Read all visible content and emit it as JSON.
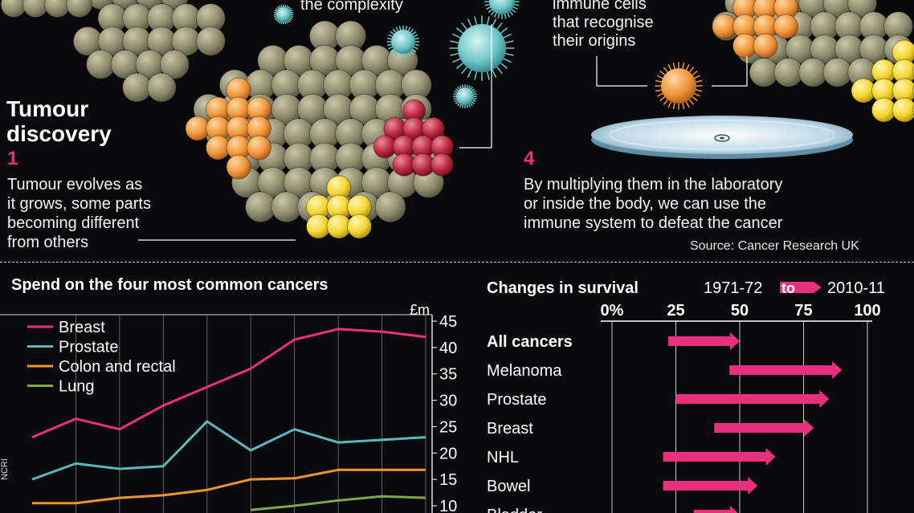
{
  "illustration": {
    "heading": "Tumour\ndiscovery",
    "top_left_text": "the complexity",
    "top_right_text": "immune cells\nthat recognise\ntheir origins",
    "step1": {
      "num": "1",
      "text": "Tumour evolves as\nit grows, some parts\nbecoming different\nfrom others"
    },
    "step4": {
      "num": "4",
      "text": "By multiplying them in the laboratory\nor inside the body, we can use the\nimmune system to defeat the cancer"
    },
    "source": "Source: Cancer Research UK",
    "colors": {
      "bg": "#0a0a0c",
      "cells": "#8d8a6e",
      "orange": "#f0953a",
      "red": "#b8273d",
      "yellow": "#f5d630",
      "virus": "#6fc7c9",
      "accent": "#e8317d"
    }
  },
  "side_label": "NCRI",
  "chart_data": [
    {
      "type": "line",
      "title": "Spend on the four most common cancers",
      "ylabel": "£m",
      "ylim": [
        10,
        45
      ],
      "yticks": [
        "45",
        "40",
        "35",
        "30",
        "25",
        "20",
        "15",
        "10"
      ],
      "x": [
        0,
        1,
        2,
        3,
        4,
        5,
        6,
        7,
        8,
        9
      ],
      "legend_position": "top-left",
      "series": [
        {
          "name": "Breast",
          "color": "#e8317d",
          "values": [
            23,
            26.5,
            24.5,
            29,
            32.5,
            36,
            41.5,
            43.5,
            43,
            42
          ]
        },
        {
          "name": "Prostate",
          "color": "#5cb8bd",
          "values": [
            15,
            18,
            17,
            17.5,
            26,
            20.5,
            24.5,
            22,
            22.5,
            23
          ]
        },
        {
          "name": "Colon and rectal",
          "color": "#f2952f",
          "values": [
            10.5,
            10.5,
            11.5,
            12,
            13,
            15,
            15.2,
            16.8,
            16.8,
            16.8
          ]
        },
        {
          "name": "Lung",
          "color": "#7fa54a",
          "values": [
            null,
            null,
            null,
            null,
            null,
            9.2,
            10,
            11,
            11.8,
            11.5
          ]
        }
      ]
    },
    {
      "type": "bar",
      "subtype": "range-arrow",
      "title": "Changes in survival",
      "from_label": "1971-72",
      "to_label": "to",
      "end_label": "2010-11",
      "xlim": [
        0,
        100
      ],
      "xticks": [
        "0%",
        "25",
        "50",
        "75",
        "100"
      ],
      "bar_color": "#e8317d",
      "categories": [
        "All cancers",
        "Melanoma",
        "Prostate",
        "Breast",
        "NHL",
        "Bowel",
        "Bladder"
      ],
      "start": [
        22,
        46,
        25,
        40,
        20,
        20,
        32
      ],
      "end": [
        50,
        90,
        85,
        79,
        64,
        57,
        50
      ]
    }
  ]
}
